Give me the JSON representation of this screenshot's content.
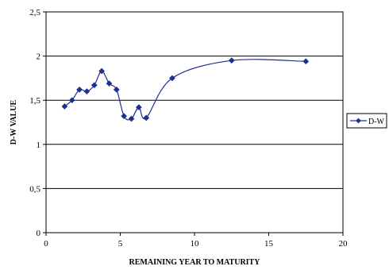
{
  "chart_data": {
    "type": "line",
    "title": "",
    "xlabel": "REMAINING YEAR TO MATURITY",
    "ylabel": "D-W VALUE",
    "xlim": [
      0,
      20
    ],
    "ylim": [
      0,
      2.5
    ],
    "x_ticks": [
      0,
      5,
      10,
      15,
      20
    ],
    "y_ticks": [
      0,
      0.5,
      1,
      1.5,
      2,
      2.5
    ],
    "x_tick_labels": [
      "0",
      "5",
      "10",
      "15",
      "20"
    ],
    "y_tick_labels": [
      "0",
      "0,5",
      "1",
      "1,5",
      "2",
      "2,5"
    ],
    "grid": "horizontal",
    "smooth": true,
    "legend_position": "right",
    "series": [
      {
        "name": "D-W",
        "color": "#1f2f8f",
        "marker": "diamond",
        "x": [
          1.25,
          1.75,
          2.25,
          2.75,
          3.25,
          3.75,
          4.25,
          4.75,
          5.25,
          5.75,
          6.25,
          6.75,
          8.5,
          12.5,
          17.5
        ],
        "y": [
          1.43,
          1.5,
          1.62,
          1.6,
          1.67,
          1.83,
          1.69,
          1.62,
          1.32,
          1.29,
          1.42,
          1.3,
          1.75,
          1.95,
          1.94
        ]
      }
    ]
  }
}
